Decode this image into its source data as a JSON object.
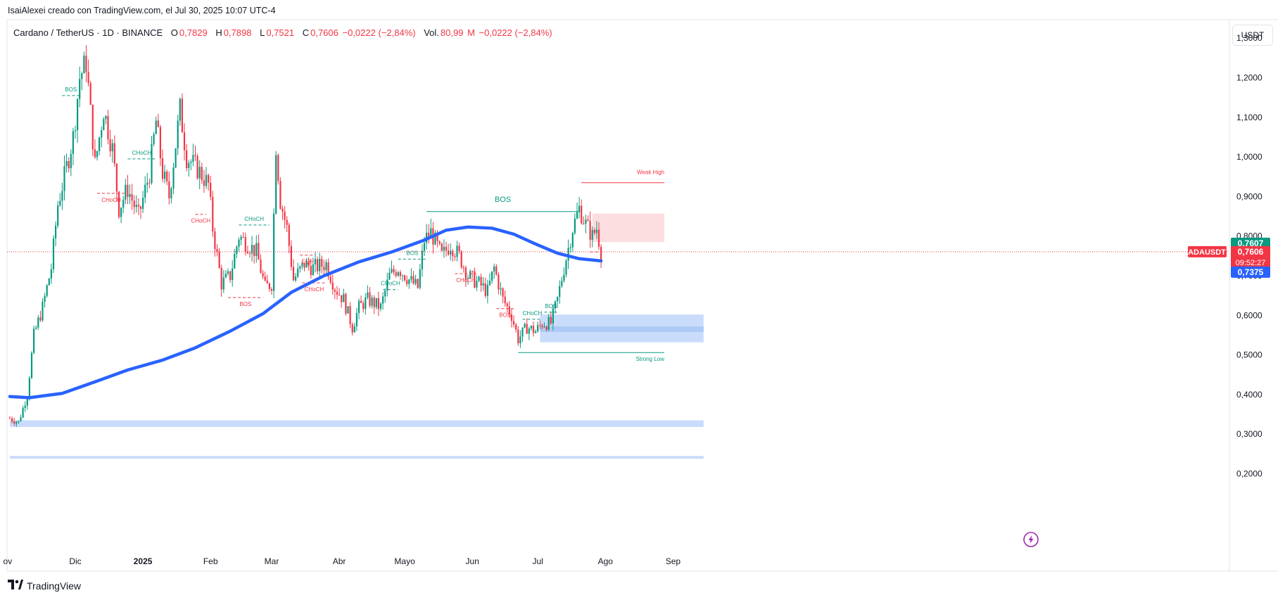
{
  "header": {
    "published_by": "IsaiAlexei creado con TradingView.com, el Jul 30, 2025 10:07 UTC-4"
  },
  "legend": {
    "symbol": "Cardano / TetherUS · 1D · BINANCE",
    "open_label": "O",
    "open": "0,7829",
    "high_label": "H",
    "high": "0,7898",
    "low_label": "L",
    "low": "0,7521",
    "close_label": "C",
    "close": "0,7606",
    "change": "−0,0222 (−2,84%)",
    "vol_label": "Vol.",
    "vol": "80,99",
    "vol_unit": "M",
    "vol_change": "−0,0222 (−2,84%)"
  },
  "currency_button": "USDT",
  "footer": {
    "brand": "TradingView"
  },
  "colors": {
    "up": "#089981",
    "down": "#f23645",
    "ma": "#2962ff",
    "zone_blue": "#bbd3fa",
    "zone_red": "#fcd7da"
  },
  "chart_data": {
    "type": "candlestick",
    "symbol": "ADAUSDT",
    "y_axis": {
      "ticks": [
        "1,3000",
        "1,2000",
        "1,1000",
        "1,0000",
        "0,9000",
        "0,8000",
        "0,7000",
        "0,6000",
        "0,5000",
        "0,4000",
        "0,3000",
        "0,2000"
      ],
      "tick_values": [
        1.3,
        1.2,
        1.1,
        1.0,
        0.9,
        0.8,
        0.7,
        0.6,
        0.5,
        0.4,
        0.3,
        0.2
      ],
      "range": [
        0.12,
        1.41
      ]
    },
    "x_axis": {
      "ticks": [
        "ov",
        "Dic",
        "2025",
        "Feb",
        "Mar",
        "Abr",
        "Mayo",
        "Jun",
        "Jul",
        "Ago",
        "Sep"
      ]
    },
    "price_labels": {
      "upper": "0,7607",
      "current_symbol": "ADAUSDT",
      "current": "0,7606",
      "countdown": "09:52:27",
      "ma": "0,7375"
    },
    "moving_average": [
      {
        "date": "2024-11-01",
        "value": 0.395
      },
      {
        "date": "2024-11-10",
        "value": 0.392
      },
      {
        "date": "2024-11-25",
        "value": 0.403
      },
      {
        "date": "2024-12-10",
        "value": 0.432
      },
      {
        "date": "2024-12-25",
        "value": 0.462
      },
      {
        "date": "2025-01-10",
        "value": 0.487
      },
      {
        "date": "2025-01-25",
        "value": 0.518
      },
      {
        "date": "2025-02-10",
        "value": 0.56
      },
      {
        "date": "2025-02-25",
        "value": 0.604
      },
      {
        "date": "2025-03-10",
        "value": 0.658
      },
      {
        "date": "2025-03-25",
        "value": 0.7
      },
      {
        "date": "2025-04-10",
        "value": 0.735
      },
      {
        "date": "2025-04-25",
        "value": 0.76
      },
      {
        "date": "2025-05-10",
        "value": 0.79
      },
      {
        "date": "2025-05-20",
        "value": 0.815
      },
      {
        "date": "2025-05-30",
        "value": 0.823
      },
      {
        "date": "2025-06-10",
        "value": 0.82
      },
      {
        "date": "2025-06-20",
        "value": 0.805
      },
      {
        "date": "2025-06-30",
        "value": 0.78
      },
      {
        "date": "2025-07-10",
        "value": 0.757
      },
      {
        "date": "2025-07-20",
        "value": 0.743
      },
      {
        "date": "2025-07-30",
        "value": 0.7375
      }
    ],
    "price_path": [
      {
        "date": "2024-11-01",
        "value": 0.34
      },
      {
        "date": "2024-11-05",
        "value": 0.33
      },
      {
        "date": "2024-11-09",
        "value": 0.4
      },
      {
        "date": "2024-11-12",
        "value": 0.55
      },
      {
        "date": "2024-11-16",
        "value": 0.62
      },
      {
        "date": "2024-11-20",
        "value": 0.72
      },
      {
        "date": "2024-11-23",
        "value": 0.88
      },
      {
        "date": "2024-11-26",
        "value": 0.95
      },
      {
        "date": "2024-11-30",
        "value": 1.05
      },
      {
        "date": "2024-12-03",
        "value": 1.2
      },
      {
        "date": "2024-12-06",
        "value": 1.24
      },
      {
        "date": "2024-12-10",
        "value": 0.98
      },
      {
        "date": "2024-12-14",
        "value": 1.12
      },
      {
        "date": "2024-12-18",
        "value": 1.02
      },
      {
        "date": "2024-12-21",
        "value": 0.87
      },
      {
        "date": "2024-12-25",
        "value": 0.92
      },
      {
        "date": "2024-12-30",
        "value": 0.85
      },
      {
        "date": "2025-01-04",
        "value": 0.96
      },
      {
        "date": "2025-01-07",
        "value": 1.09
      },
      {
        "date": "2025-01-10",
        "value": 0.96
      },
      {
        "date": "2025-01-13",
        "value": 0.9
      },
      {
        "date": "2025-01-18",
        "value": 1.12
      },
      {
        "date": "2025-01-21",
        "value": 1.0
      },
      {
        "date": "2025-01-26",
        "value": 0.97
      },
      {
        "date": "2025-01-31",
        "value": 0.93
      },
      {
        "date": "2025-02-02",
        "value": 0.82
      },
      {
        "date": "2025-02-06",
        "value": 0.68
      },
      {
        "date": "2025-02-10",
        "value": 0.7
      },
      {
        "date": "2025-02-14",
        "value": 0.8
      },
      {
        "date": "2025-02-18",
        "value": 0.78
      },
      {
        "date": "2025-02-22",
        "value": 0.76
      },
      {
        "date": "2025-02-26",
        "value": 0.67
      },
      {
        "date": "2025-03-01",
        "value": 0.68
      },
      {
        "date": "2025-03-03",
        "value": 1.03
      },
      {
        "date": "2025-03-05",
        "value": 0.89
      },
      {
        "date": "2025-03-08",
        "value": 0.82
      },
      {
        "date": "2025-03-11",
        "value": 0.69
      },
      {
        "date": "2025-03-16",
        "value": 0.73
      },
      {
        "date": "2025-03-20",
        "value": 0.72
      },
      {
        "date": "2025-03-26",
        "value": 0.73
      },
      {
        "date": "2025-03-30",
        "value": 0.67
      },
      {
        "date": "2025-04-03",
        "value": 0.64
      },
      {
        "date": "2025-04-07",
        "value": 0.57
      },
      {
        "date": "2025-04-10",
        "value": 0.62
      },
      {
        "date": "2025-04-14",
        "value": 0.64
      },
      {
        "date": "2025-04-20",
        "value": 0.62
      },
      {
        "date": "2025-04-24",
        "value": 0.7
      },
      {
        "date": "2025-04-28",
        "value": 0.72
      },
      {
        "date": "2025-05-03",
        "value": 0.69
      },
      {
        "date": "2025-05-07",
        "value": 0.67
      },
      {
        "date": "2025-05-10",
        "value": 0.79
      },
      {
        "date": "2025-05-13",
        "value": 0.81
      },
      {
        "date": "2025-05-18",
        "value": 0.75
      },
      {
        "date": "2025-05-22",
        "value": 0.78
      },
      {
        "date": "2025-05-26",
        "value": 0.75
      },
      {
        "date": "2025-05-30",
        "value": 0.7
      },
      {
        "date": "2025-06-04",
        "value": 0.68
      },
      {
        "date": "2025-06-08",
        "value": 0.66
      },
      {
        "date": "2025-06-11",
        "value": 0.72
      },
      {
        "date": "2025-06-15",
        "value": 0.64
      },
      {
        "date": "2025-06-19",
        "value": 0.6
      },
      {
        "date": "2025-06-22",
        "value": 0.54
      },
      {
        "date": "2025-06-26",
        "value": 0.57
      },
      {
        "date": "2025-06-30",
        "value": 0.56
      },
      {
        "date": "2025-07-03",
        "value": 0.58
      },
      {
        "date": "2025-07-07",
        "value": 0.58
      },
      {
        "date": "2025-07-10",
        "value": 0.64
      },
      {
        "date": "2025-07-13",
        "value": 0.72
      },
      {
        "date": "2025-07-17",
        "value": 0.82
      },
      {
        "date": "2025-07-20",
        "value": 0.87
      },
      {
        "date": "2025-07-23",
        "value": 0.83
      },
      {
        "date": "2025-07-26",
        "value": 0.8
      },
      {
        "date": "2025-07-28",
        "value": 0.82
      },
      {
        "date": "2025-07-30",
        "value": 0.7606
      }
    ],
    "zones": [
      {
        "kind": "blue",
        "from": "2024-11-01",
        "to": "2025-09-15",
        "low": 0.318,
        "high": 0.335
      },
      {
        "kind": "blue",
        "from": "2024-11-01",
        "to": "2025-09-15",
        "low": 0.238,
        "high": 0.245
      },
      {
        "kind": "blue",
        "from": "2025-07-02",
        "to": "2025-09-15",
        "low": 0.532,
        "high": 0.602
      },
      {
        "kind": "blue_dark",
        "from": "2025-07-02",
        "to": "2025-09-15",
        "low": 0.558,
        "high": 0.572
      },
      {
        "kind": "red",
        "from": "2025-07-26",
        "to": "2025-08-28",
        "low": 0.785,
        "high": 0.857
      }
    ],
    "structure_lines": [
      {
        "label": "BOS",
        "kind": "up",
        "style": "dashed",
        "from": "2024-11-25",
        "to": "2024-12-03",
        "level": 1.155
      },
      {
        "label": "CHoCH",
        "kind": "up",
        "style": "dashed",
        "from": "2024-12-25",
        "to": "2025-01-07",
        "level": 0.995
      },
      {
        "label": "CHoCH",
        "kind": "down",
        "style": "dashed",
        "from": "2024-12-11",
        "to": "2024-12-24",
        "level": 0.908
      },
      {
        "label": "CHoCH",
        "kind": "down",
        "style": "dashed",
        "from": "2025-01-25",
        "to": "2025-01-30",
        "level": 0.855
      },
      {
        "label": "CHoCH",
        "kind": "up",
        "style": "dashed",
        "from": "2025-02-14",
        "to": "2025-02-28",
        "level": 0.828
      },
      {
        "label": "BOS",
        "kind": "down",
        "style": "dashed",
        "from": "2025-02-09",
        "to": "2025-02-25",
        "level": 0.645
      },
      {
        "label": "EQH",
        "kind": "down",
        "style": "dashed",
        "from": "2025-03-14",
        "to": "2025-03-21",
        "level": 0.752
      },
      {
        "label": "CHoCH",
        "kind": "down",
        "style": "dashed",
        "from": "2025-03-15",
        "to": "2025-03-26",
        "level": 0.682
      },
      {
        "label": "CHoCH",
        "kind": "up",
        "style": "dashed",
        "from": "2025-04-21",
        "to": "2025-04-28",
        "level": 0.665
      },
      {
        "label": "BOS",
        "kind": "up",
        "style": "dashed",
        "from": "2025-04-28",
        "to": "2025-05-11",
        "level": 0.742
      },
      {
        "label": "BOS",
        "kind": "up",
        "style": "solid",
        "from": "2025-05-11",
        "to": "2025-07-20",
        "level": 0.862
      },
      {
        "label": "CHoCH",
        "kind": "down",
        "style": "dashed",
        "from": "2025-05-24",
        "to": "2025-06-03",
        "level": 0.705
      },
      {
        "label": "BOS",
        "kind": "down",
        "style": "dashed",
        "from": "2025-06-12",
        "to": "2025-06-20",
        "level": 0.617
      },
      {
        "label": "CHoCH",
        "kind": "up",
        "style": "dashed",
        "from": "2025-06-24",
        "to": "2025-07-03",
        "level": 0.59
      },
      {
        "label": "BOS",
        "kind": "up",
        "style": "dashed",
        "from": "2025-07-04",
        "to": "2025-07-10",
        "level": 0.608
      },
      {
        "label": "",
        "kind": "down",
        "style": "dashed",
        "from": "2025-07-25",
        "to": "2025-07-29",
        "level": 0.76
      },
      {
        "label": "Weak High",
        "kind": "down",
        "style": "solid",
        "from": "2025-07-21",
        "to": "2025-08-28",
        "level": 0.935
      },
      {
        "label": "Strong Low",
        "kind": "up",
        "style": "solid",
        "from": "2025-06-22",
        "to": "2025-08-28",
        "level": 0.506
      }
    ],
    "grid": false,
    "legend_position": "top-left"
  }
}
